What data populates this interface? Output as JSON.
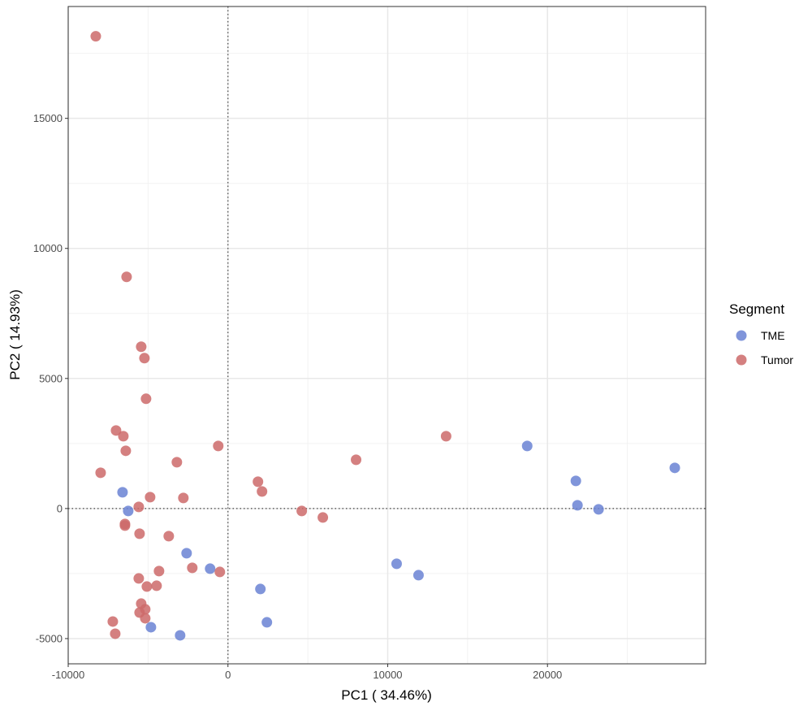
{
  "chart_data": {
    "type": "scatter",
    "xlabel": "PC1 ( 34.46%)",
    "ylabel": "PC2 ( 14.93%)",
    "xlim": [
      -10000,
      29900
    ],
    "ylim": [
      -5970,
      19300
    ],
    "x_ticks": [
      -10000,
      0,
      10000,
      20000
    ],
    "x_tick_labels": [
      "-10000",
      "0",
      "10000",
      "20000"
    ],
    "y_ticks": [
      -5000,
      0,
      5000,
      10000,
      15000
    ],
    "y_tick_labels": [
      "-5000",
      "0",
      "5000",
      "10000",
      "15000"
    ],
    "grid": true,
    "reference_lines": {
      "x": 0,
      "y": 0,
      "style": "dotted"
    },
    "legend": {
      "title": "Segment",
      "placement": "right"
    },
    "series": [
      {
        "name": "TME",
        "color": "#6a82d4",
        "points": [
          [
            -6599,
            625
          ],
          [
            -6244,
            -94
          ],
          [
            -2589,
            -1719
          ],
          [
            -1117,
            -2313
          ],
          [
            -4822,
            -4563
          ],
          [
            -2995,
            -4875
          ],
          [
            2030,
            -3094
          ],
          [
            2437,
            -4375
          ],
          [
            10558,
            -2125
          ],
          [
            11929,
            -2563
          ],
          [
            18731,
            2406
          ],
          [
            21777,
            1063
          ],
          [
            21878,
            125
          ],
          [
            23198,
            -31
          ],
          [
            27970,
            1563
          ]
        ]
      },
      {
        "name": "Tumor",
        "color": "#cc6a6a",
        "points": [
          [
            -8274,
            18156
          ],
          [
            -6345,
            8906
          ],
          [
            -5431,
            6219
          ],
          [
            -5228,
            5781
          ],
          [
            -5127,
            4219
          ],
          [
            -7005,
            3000
          ],
          [
            -6548,
            2781
          ],
          [
            -6396,
            2219
          ],
          [
            -609,
            2406
          ],
          [
            -3198,
            1781
          ],
          [
            -7970,
            1375
          ],
          [
            -4873,
            438
          ],
          [
            -2792,
            406
          ],
          [
            -5584,
            63
          ],
          [
            -6447,
            -656
          ],
          [
            -6447,
            -594
          ],
          [
            -5533,
            -969
          ],
          [
            -3706,
            -1063
          ],
          [
            -2234,
            -2281
          ],
          [
            -508,
            -2438
          ],
          [
            -4315,
            -2406
          ],
          [
            -5584,
            -2688
          ],
          [
            -5076,
            -3000
          ],
          [
            -4467,
            -2969
          ],
          [
            -5431,
            -3656
          ],
          [
            -5178,
            -3875
          ],
          [
            -5533,
            -4000
          ],
          [
            -5178,
            -4219
          ],
          [
            -7208,
            -4344
          ],
          [
            -7056,
            -4813
          ],
          [
            1878,
            1031
          ],
          [
            2132,
            656
          ],
          [
            4619,
            -94
          ],
          [
            5939,
            -344
          ],
          [
            8020,
            1875
          ],
          [
            13655,
            2781
          ]
        ]
      }
    ]
  }
}
